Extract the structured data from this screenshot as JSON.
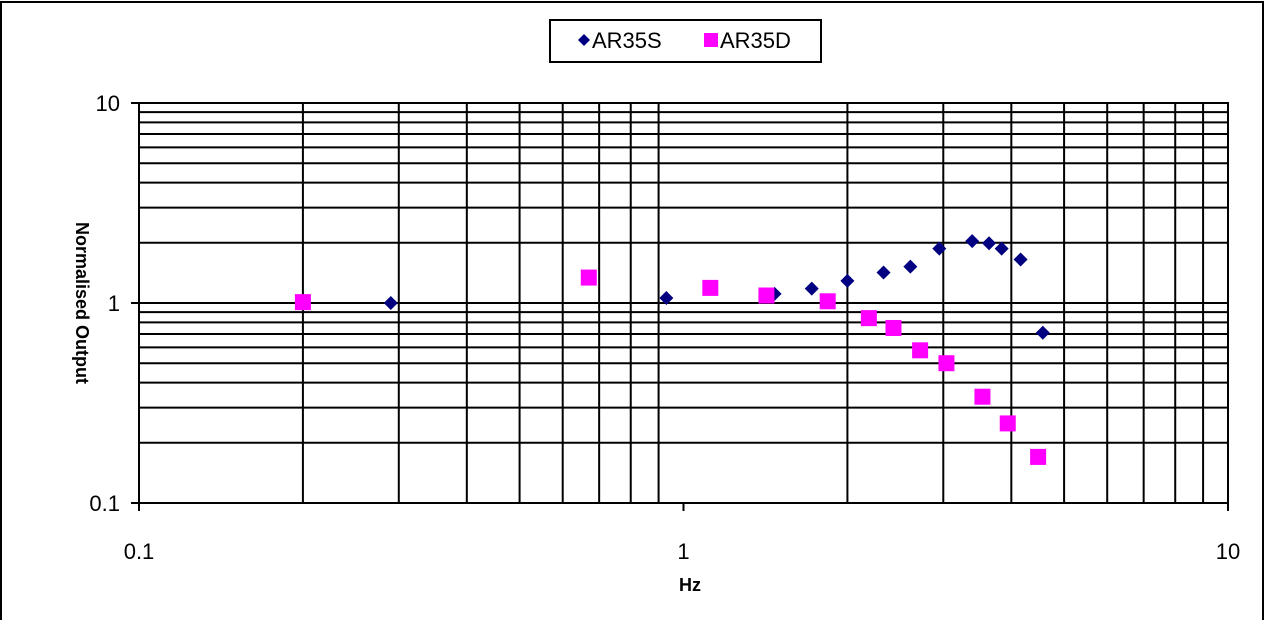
{
  "chart_data": {
    "type": "scatter",
    "xlabel": "Hz",
    "ylabel": "Normalised Output",
    "xscale": "log",
    "yscale": "log",
    "xlim": [
      0.1,
      10
    ],
    "ylim": [
      0.1,
      10
    ],
    "xticks": [
      "0.1",
      "1",
      "10"
    ],
    "yticks": [
      "0.1",
      "1",
      "10"
    ],
    "grid": true,
    "legend": "top-center",
    "series": [
      {
        "name": "AR35S",
        "marker": "diamond",
        "color": "#000080",
        "points": [
          {
            "x": 0.29,
            "y": 1.0
          },
          {
            "x": 0.93,
            "y": 1.06
          },
          {
            "x": 1.47,
            "y": 1.11
          },
          {
            "x": 1.72,
            "y": 1.18
          },
          {
            "x": 2.0,
            "y": 1.29
          },
          {
            "x": 2.33,
            "y": 1.42
          },
          {
            "x": 2.61,
            "y": 1.52
          },
          {
            "x": 2.95,
            "y": 1.87
          },
          {
            "x": 3.39,
            "y": 2.04
          },
          {
            "x": 3.64,
            "y": 1.99
          },
          {
            "x": 3.84,
            "y": 1.87
          },
          {
            "x": 4.16,
            "y": 1.65
          },
          {
            "x": 4.57,
            "y": 0.71
          }
        ]
      },
      {
        "name": "AR35D",
        "marker": "square",
        "color": "#ff00ff",
        "points": [
          {
            "x": 0.2,
            "y": 1.01
          },
          {
            "x": 0.67,
            "y": 1.34
          },
          {
            "x": 1.12,
            "y": 1.19
          },
          {
            "x": 1.42,
            "y": 1.09
          },
          {
            "x": 1.84,
            "y": 1.02
          },
          {
            "x": 2.19,
            "y": 0.84
          },
          {
            "x": 2.43,
            "y": 0.75
          },
          {
            "x": 2.72,
            "y": 0.58
          },
          {
            "x": 3.04,
            "y": 0.5
          },
          {
            "x": 3.54,
            "y": 0.34
          },
          {
            "x": 3.94,
            "y": 0.25
          },
          {
            "x": 4.48,
            "y": 0.17
          }
        ]
      }
    ]
  }
}
